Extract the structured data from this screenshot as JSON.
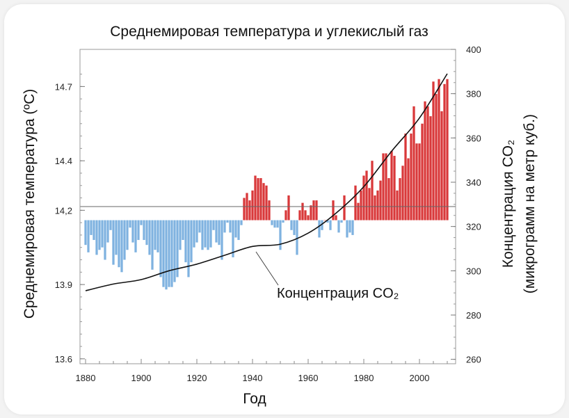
{
  "chart_data": {
    "type": "bar",
    "title": "Среднемировая температура и углекислый газ",
    "xlabel": "Год",
    "ylabel_left": "Среднемировая температура (ºC)",
    "ylabel_right_line1": "Концентрация CO₂",
    "ylabel_right_line2": "(микрограмм на метр куб.)",
    "annotation": "Концентрация CO₂",
    "x_ticks": [
      "1880",
      "1900",
      "1920",
      "1940",
      "1960",
      "1980",
      "2000"
    ],
    "y_left_ticks": [
      "14.7",
      "14.4",
      "14,2",
      "13.9",
      "13.6"
    ],
    "y_right_ticks": [
      "400",
      "380",
      "360",
      "340",
      "320",
      "300",
      "280",
      "260"
    ],
    "xlim": [
      1878,
      2013
    ],
    "y_left_lim": [
      13.58,
      14.85
    ],
    "y_right_lim": [
      258,
      400
    ],
    "baseline": 14.16,
    "grid": false,
    "colors": {
      "positive": "#d9383a",
      "negative": "#7fb2e0",
      "line": "#111111"
    },
    "temperature": {
      "name": "Среднемировая температура",
      "years": [
        1880,
        1881,
        1882,
        1883,
        1884,
        1885,
        1886,
        1887,
        1888,
        1889,
        1890,
        1891,
        1892,
        1893,
        1894,
        1895,
        1896,
        1897,
        1898,
        1899,
        1900,
        1901,
        1902,
        1903,
        1904,
        1905,
        1906,
        1907,
        1908,
        1909,
        1910,
        1911,
        1912,
        1913,
        1914,
        1915,
        1916,
        1917,
        1918,
        1919,
        1920,
        1921,
        1922,
        1923,
        1924,
        1925,
        1926,
        1927,
        1928,
        1929,
        1930,
        1931,
        1932,
        1933,
        1934,
        1935,
        1936,
        1937,
        1938,
        1939,
        1940,
        1941,
        1942,
        1943,
        1944,
        1945,
        1946,
        1947,
        1948,
        1949,
        1950,
        1951,
        1952,
        1953,
        1954,
        1955,
        1956,
        1957,
        1958,
        1959,
        1960,
        1961,
        1962,
        1963,
        1964,
        1965,
        1966,
        1967,
        1968,
        1969,
        1970,
        1971,
        1972,
        1973,
        1974,
        1975,
        1976,
        1977,
        1978,
        1979,
        1980,
        1981,
        1982,
        1983,
        1984,
        1985,
        1986,
        1987,
        1988,
        1989,
        1990,
        1991,
        1992,
        1993,
        1994,
        1995,
        1996,
        1997,
        1998,
        1999,
        2000,
        2001,
        2002,
        2003,
        2004,
        2005,
        2006,
        2007,
        2008,
        2009,
        2010
      ],
      "values": [
        14.06,
        14.03,
        14.1,
        14.08,
        14.02,
        14.04,
        14.05,
        14.0,
        14.07,
        14.12,
        13.98,
        14.02,
        13.97,
        13.95,
        14.0,
        14.04,
        14.13,
        14.07,
        14.03,
        14.08,
        14.14,
        14.08,
        14.06,
        14.02,
        13.96,
        14.04,
        14.03,
        13.93,
        13.89,
        13.88,
        13.89,
        13.89,
        13.91,
        13.93,
        14.04,
        14.08,
        13.99,
        13.93,
        13.99,
        14.05,
        14.07,
        14.11,
        14.04,
        14.05,
        14.04,
        14.05,
        14.12,
        14.07,
        14.06,
        14.0,
        14.11,
        14.15,
        14.11,
        14.01,
        14.09,
        14.08,
        14.14,
        14.25,
        14.27,
        14.24,
        14.28,
        14.34,
        14.33,
        14.33,
        14.31,
        14.3,
        14.24,
        14.14,
        14.13,
        14.13,
        14.04,
        14.15,
        14.2,
        14.26,
        14.12,
        14.1,
        14.02,
        14.2,
        14.23,
        14.2,
        14.18,
        14.22,
        14.24,
        14.24,
        14.09,
        14.12,
        14.16,
        14.15,
        14.12,
        14.24,
        14.18,
        14.11,
        14.15,
        14.26,
        14.09,
        14.11,
        14.1,
        14.3,
        14.23,
        14.28,
        14.34,
        14.36,
        14.29,
        14.4,
        14.26,
        14.28,
        14.32,
        14.43,
        14.43,
        14.33,
        14.44,
        14.42,
        14.28,
        14.33,
        14.38,
        14.51,
        14.41,
        14.51,
        14.62,
        14.47,
        14.47,
        14.55,
        14.64,
        14.62,
        14.58,
        14.72,
        14.67,
        14.73,
        14.6,
        14.71,
        14.73
      ]
    },
    "co2": {
      "name": "Концентрация CO₂",
      "years": [
        1880,
        1890,
        1900,
        1910,
        1920,
        1930,
        1940,
        1950,
        1960,
        1970,
        1980,
        1990,
        2000,
        2010
      ],
      "values": [
        291,
        294,
        296,
        300,
        303,
        307,
        311,
        312,
        317,
        326,
        338,
        354,
        369,
        389
      ]
    }
  }
}
